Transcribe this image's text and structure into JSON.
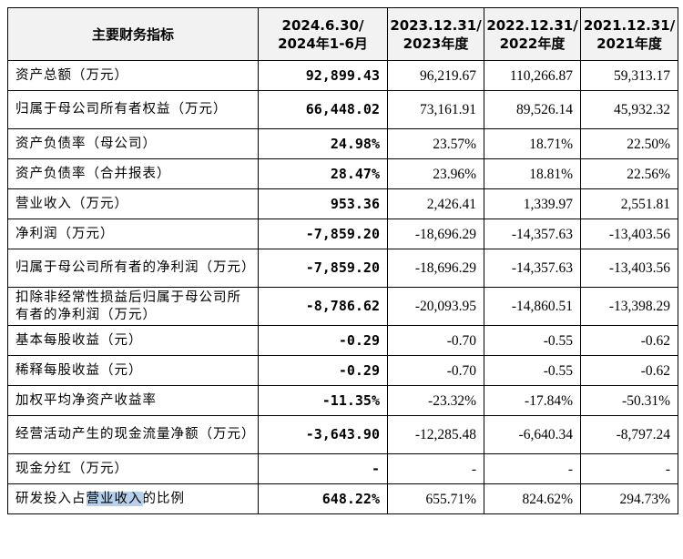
{
  "headers": [
    "主要财务指标",
    "2024.6.30/\n2024年1-6月",
    "2023.12.31/\n2023年度",
    "2022.12.31/\n2022年度",
    "2021.12.31/\n2021年度"
  ],
  "rows": [
    {
      "label": "资产总额（万元）",
      "v": [
        "92,899.43",
        "96,219.67",
        "110,266.87",
        "59,313.17"
      ]
    },
    {
      "label": "归属于母公司所有者权益（万元）",
      "v": [
        "66,448.02",
        "73,161.91",
        "89,526.14",
        "45,932.32"
      ]
    },
    {
      "label": "资产负债率（母公司）",
      "v": [
        "24.98%",
        "23.57%",
        "18.71%",
        "22.50%"
      ]
    },
    {
      "label": "资产负债率（合并报表）",
      "v": [
        "28.47%",
        "23.96%",
        "18.81%",
        "22.56%"
      ]
    },
    {
      "label": "营业收入（万元）",
      "v": [
        "953.36",
        "2,426.41",
        "1,339.97",
        "2,551.81"
      ]
    },
    {
      "label": "净利润（万元）",
      "v": [
        "-7,859.20",
        "-18,696.29",
        "-14,357.63",
        "-13,403.56"
      ]
    },
    {
      "label": "归属于母公司所有者的净利润（万元）",
      "v": [
        "-7,859.20",
        "-18,696.29",
        "-14,357.63",
        "-13,403.56"
      ]
    },
    {
      "label": "扣除非经常性损益后归属于母公司所有者的净利润（万元）",
      "v": [
        "-8,786.62",
        "-20,093.95",
        "-14,860.51",
        "-13,398.29"
      ]
    },
    {
      "label": "基本每股收益（元）",
      "v": [
        "-0.29",
        "-0.70",
        "-0.55",
        "-0.62"
      ]
    },
    {
      "label": "稀释每股收益（元）",
      "v": [
        "-0.29",
        "-0.70",
        "-0.55",
        "-0.62"
      ]
    },
    {
      "label": "加权平均净资产收益率",
      "v": [
        "-11.35%",
        "-23.32%",
        "-17.84%",
        "-50.31%"
      ]
    },
    {
      "label": "经营活动产生的现金流量净额（万元）",
      "v": [
        "-3,643.90",
        "-12,285.48",
        "-6,640.34",
        "-8,797.24"
      ]
    },
    {
      "label": "现金分红（万元）",
      "v": [
        "-",
        "-",
        "-",
        "-"
      ]
    },
    {
      "label_pre": "研发投入占",
      "label_hl": "营业收入",
      "label_post": "的比例",
      "v": [
        "648.22%",
        "655.71%",
        "824.62%",
        "294.73%"
      ]
    }
  ]
}
